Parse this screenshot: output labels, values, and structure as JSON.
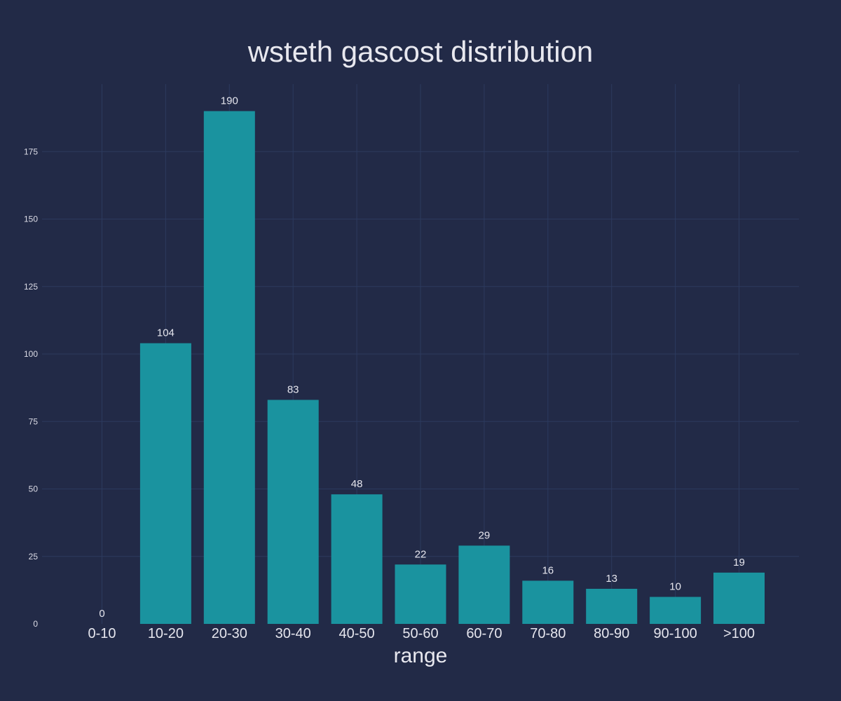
{
  "chart_data": {
    "type": "bar",
    "title": "wsteth gascost distribution",
    "xlabel": "range",
    "ylabel": "",
    "categories": [
      "0-10",
      "10-20",
      "20-30",
      "30-40",
      "40-50",
      "50-60",
      "60-70",
      "70-80",
      "80-90",
      "90-100",
      ">100"
    ],
    "values": [
      0,
      104,
      190,
      83,
      48,
      22,
      29,
      16,
      13,
      10,
      19
    ],
    "ylim": [
      0,
      200
    ],
    "yticks": [
      0,
      25,
      50,
      75,
      100,
      125,
      150,
      175
    ],
    "grid": true,
    "legend": "none",
    "colors": {
      "background": "#222a47",
      "bar": "#1a939f",
      "grid": "#2c3a5e",
      "text": "#e6e6ee"
    }
  }
}
